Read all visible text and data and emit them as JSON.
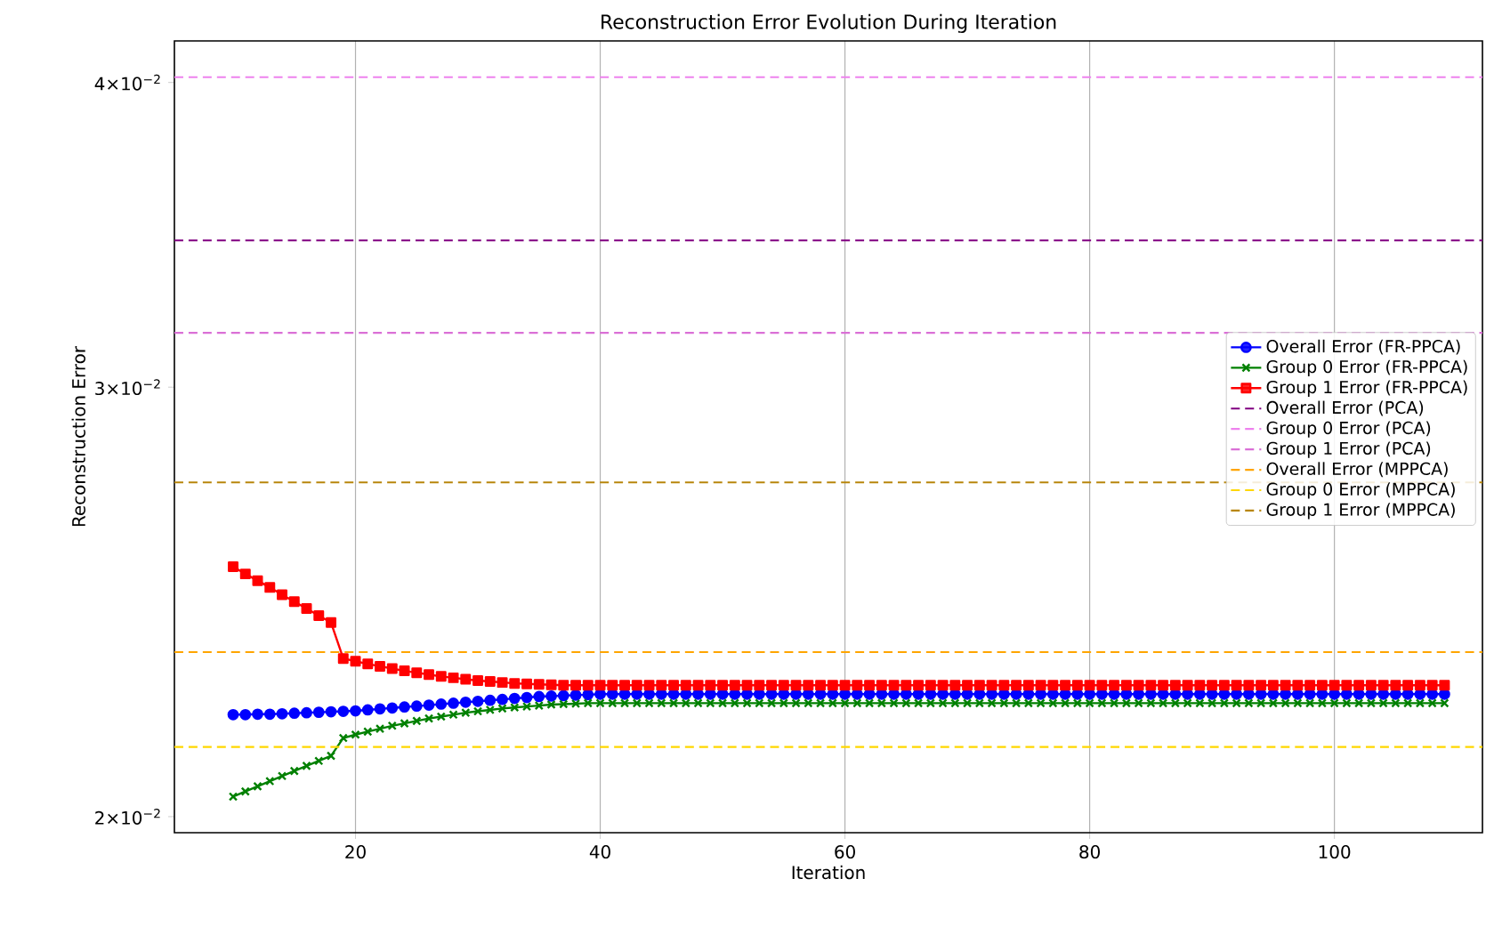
{
  "chart_data": {
    "type": "line",
    "title": "Reconstruction Error Evolution During Iteration",
    "xlabel": "Iteration",
    "ylabel": "Reconstruction Error",
    "x": [
      10,
      11,
      12,
      13,
      14,
      15,
      16,
      17,
      18,
      19,
      20,
      21,
      22,
      23,
      24,
      25,
      26,
      27,
      28,
      29,
      30,
      31,
      32,
      33,
      34,
      35,
      36,
      37,
      38,
      39,
      40,
      41,
      42,
      43,
      44,
      45,
      46,
      47,
      48,
      49,
      50,
      51,
      52,
      53,
      54,
      55,
      56,
      57,
      58,
      59,
      60,
      61,
      62,
      63,
      64,
      65,
      66,
      67,
      68,
      69,
      70,
      71,
      72,
      73,
      74,
      75,
      76,
      77,
      78,
      79,
      80,
      81,
      82,
      83,
      84,
      85,
      86,
      87,
      88,
      89,
      90,
      91,
      92,
      93,
      94,
      95,
      96,
      97,
      98,
      99,
      100,
      101,
      102,
      103,
      104,
      105,
      106,
      107,
      108,
      109
    ],
    "series": [
      {
        "name": "Overall Error (FR-PPCA)",
        "color": "#0000ff",
        "marker": "circle",
        "values": [
          0.02202,
          0.02202,
          0.02203,
          0.02203,
          0.02204,
          0.02205,
          0.02206,
          0.02207,
          0.02208,
          0.02209,
          0.0221,
          0.02212,
          0.02214,
          0.02216,
          0.02218,
          0.0222,
          0.02222,
          0.02224,
          0.02226,
          0.02228,
          0.0223,
          0.02232,
          0.02234,
          0.02236,
          0.02238,
          0.0224,
          0.02241,
          0.02242,
          0.02243,
          0.02244,
          0.02245,
          0.02245,
          0.02245,
          0.02245,
          0.02245,
          0.02245,
          0.02245,
          0.02245,
          0.02245,
          0.02245,
          0.02245,
          0.02245,
          0.02245,
          0.02245,
          0.02245,
          0.02245,
          0.02245,
          0.02245,
          0.02245,
          0.02245,
          0.02245,
          0.02245,
          0.02245,
          0.02245,
          0.02245,
          0.02245,
          0.02245,
          0.02245,
          0.02245,
          0.02245,
          0.02245,
          0.02245,
          0.02245,
          0.02245,
          0.02245,
          0.02245,
          0.02245,
          0.02245,
          0.02245,
          0.02245,
          0.02245,
          0.02245,
          0.02245,
          0.02245,
          0.02245,
          0.02245,
          0.02245,
          0.02245,
          0.02245,
          0.02245,
          0.02245,
          0.02245,
          0.02245,
          0.02245,
          0.02245,
          0.02245,
          0.02245,
          0.02245,
          0.02245,
          0.02245,
          0.02245,
          0.02245,
          0.02245,
          0.02245,
          0.02245,
          0.02245,
          0.02245,
          0.02245,
          0.02245,
          0.02245
        ]
      },
      {
        "name": "Group 0 Error (FR-PPCA)",
        "color": "#008000",
        "marker": "cross",
        "values": [
          0.02038,
          0.02048,
          0.02058,
          0.02068,
          0.02078,
          0.02088,
          0.02098,
          0.02108,
          0.02118,
          0.02154,
          0.02161,
          0.02167,
          0.02173,
          0.02179,
          0.02184,
          0.02189,
          0.02194,
          0.02198,
          0.02202,
          0.02206,
          0.02209,
          0.02212,
          0.02215,
          0.02217,
          0.02219,
          0.02221,
          0.02223,
          0.02224,
          0.02225,
          0.02226,
          0.02226,
          0.02226,
          0.02226,
          0.02226,
          0.02226,
          0.02226,
          0.02226,
          0.02226,
          0.02226,
          0.02226,
          0.02226,
          0.02226,
          0.02226,
          0.02226,
          0.02226,
          0.02226,
          0.02226,
          0.02226,
          0.02226,
          0.02226,
          0.02226,
          0.02226,
          0.02226,
          0.02226,
          0.02226,
          0.02226,
          0.02226,
          0.02226,
          0.02226,
          0.02226,
          0.02226,
          0.02226,
          0.02226,
          0.02226,
          0.02226,
          0.02226,
          0.02226,
          0.02226,
          0.02226,
          0.02226,
          0.02226,
          0.02226,
          0.02226,
          0.02226,
          0.02226,
          0.02226,
          0.02226,
          0.02226,
          0.02226,
          0.02226,
          0.02226,
          0.02226,
          0.02226,
          0.02226,
          0.02226,
          0.02226,
          0.02226,
          0.02226,
          0.02226,
          0.02226,
          0.02226,
          0.02226,
          0.02226,
          0.02226,
          0.02226,
          0.02226,
          0.02226,
          0.02226,
          0.02226,
          0.02226
        ]
      },
      {
        "name": "Group 1 Error (FR-PPCA)",
        "color": "#ff0000",
        "marker": "square",
        "values": [
          0.02532,
          0.02515,
          0.02499,
          0.02483,
          0.02466,
          0.0245,
          0.02434,
          0.02418,
          0.02402,
          0.02322,
          0.02316,
          0.0231,
          0.02305,
          0.023,
          0.02295,
          0.02291,
          0.02287,
          0.02283,
          0.0228,
          0.02277,
          0.02274,
          0.02272,
          0.0227,
          0.02268,
          0.02267,
          0.02266,
          0.02265,
          0.02264,
          0.02264,
          0.02264,
          0.02264,
          0.02264,
          0.02264,
          0.02264,
          0.02264,
          0.02264,
          0.02264,
          0.02264,
          0.02264,
          0.02264,
          0.02264,
          0.02264,
          0.02264,
          0.02264,
          0.02264,
          0.02264,
          0.02264,
          0.02264,
          0.02264,
          0.02264,
          0.02264,
          0.02264,
          0.02264,
          0.02264,
          0.02264,
          0.02264,
          0.02264,
          0.02264,
          0.02264,
          0.02264,
          0.02264,
          0.02264,
          0.02264,
          0.02264,
          0.02264,
          0.02264,
          0.02264,
          0.02264,
          0.02264,
          0.02264,
          0.02264,
          0.02264,
          0.02264,
          0.02264,
          0.02264,
          0.02264,
          0.02264,
          0.02264,
          0.02264,
          0.02264,
          0.02264,
          0.02264,
          0.02264,
          0.02264,
          0.02264,
          0.02264,
          0.02264,
          0.02264,
          0.02264,
          0.02264,
          0.02264,
          0.02264,
          0.02264,
          0.02264,
          0.02264,
          0.02264,
          0.02264,
          0.02264,
          0.02264,
          0.02264
        ]
      }
    ],
    "ref_lines": [
      {
        "axis": "y",
        "value": 0.03446,
        "label": "Overall Error (PCA)",
        "color": "#800080",
        "line_style": "dashed"
      },
      {
        "axis": "y",
        "value": 0.0402,
        "label": "Group 0 Error (PCA)",
        "color": "#ee82ee",
        "line_style": "dashed"
      },
      {
        "axis": "y",
        "value": 0.03158,
        "label": "Group 1 Error (PCA)",
        "color": "#da70d6",
        "line_style": "dashed"
      },
      {
        "axis": "y",
        "value": 0.02336,
        "label": "Overall Error (MPPCA)",
        "color": "#ffa500",
        "line_style": "dashed"
      },
      {
        "axis": "y",
        "value": 0.02136,
        "label": "Group 0 Error (MPPCA)",
        "color": "#ffd700",
        "line_style": "dashed"
      },
      {
        "axis": "y",
        "value": 0.02742,
        "label": "Group 1 Error (MPPCA)",
        "color": "#b8860b",
        "line_style": "dashed"
      }
    ],
    "log": "y",
    "xlim": [
      5.2,
      112.1
    ],
    "ylim": [
      0.0197,
      0.0416
    ],
    "xticks": [
      20,
      40,
      60,
      80,
      100
    ],
    "yticks": [
      {
        "value": 0.02,
        "label": "2×10$^{−2}$"
      },
      {
        "value": 0.03,
        "label": "3×10$^{−2}$"
      },
      {
        "value": 0.04,
        "label": "4×10$^{−2}$"
      }
    ],
    "grid": "x",
    "legend": "right",
    "line_style": "solid"
  }
}
